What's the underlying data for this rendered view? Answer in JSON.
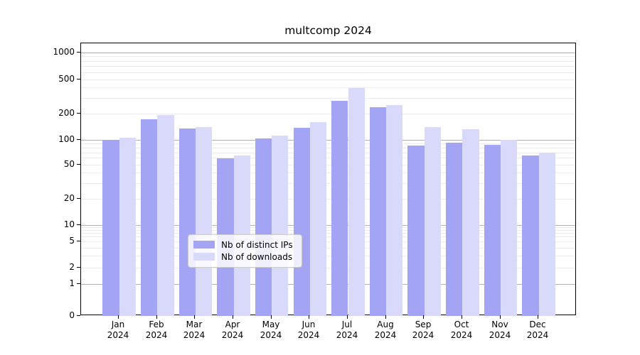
{
  "title": "multcomp 2024",
  "chart_data": {
    "type": "bar",
    "title": "multcomp 2024",
    "categories": [
      "Jan",
      "Feb",
      "Mar",
      "Apr",
      "May",
      "Jun",
      "Jul",
      "Aug",
      "Sep",
      "Oct",
      "Nov",
      "Dec"
    ],
    "category_year": "2024",
    "series": [
      {
        "name": "Nb of distinct IPs",
        "color": "#a4a4f4",
        "values": [
          100,
          172,
          135,
          60,
          103,
          138,
          280,
          237,
          86,
          92,
          88,
          65
        ]
      },
      {
        "name": "Nb of downloads",
        "color": "#d9d9f9",
        "values": [
          106,
          193,
          141,
          65,
          111,
          160,
          395,
          250,
          140,
          132,
          100,
          70
        ]
      }
    ],
    "xlabel": "",
    "ylabel": "",
    "y_ticks": [
      0,
      1,
      2,
      5,
      10,
      20,
      50,
      100,
      200,
      500,
      1000
    ],
    "y_scale": "log-with-zero-baseline",
    "ylim": [
      0,
      1200
    ],
    "grid": "horizontal, log minors",
    "legend_position": "bottom-center-inside"
  },
  "colors": {
    "series_ips": "#a4a4f4",
    "series_downloads": "#d9d9f9",
    "grid_major": "#b0b0b0",
    "grid_minor": "#ebebeb",
    "axis": "#000000",
    "background": "#ffffff"
  }
}
